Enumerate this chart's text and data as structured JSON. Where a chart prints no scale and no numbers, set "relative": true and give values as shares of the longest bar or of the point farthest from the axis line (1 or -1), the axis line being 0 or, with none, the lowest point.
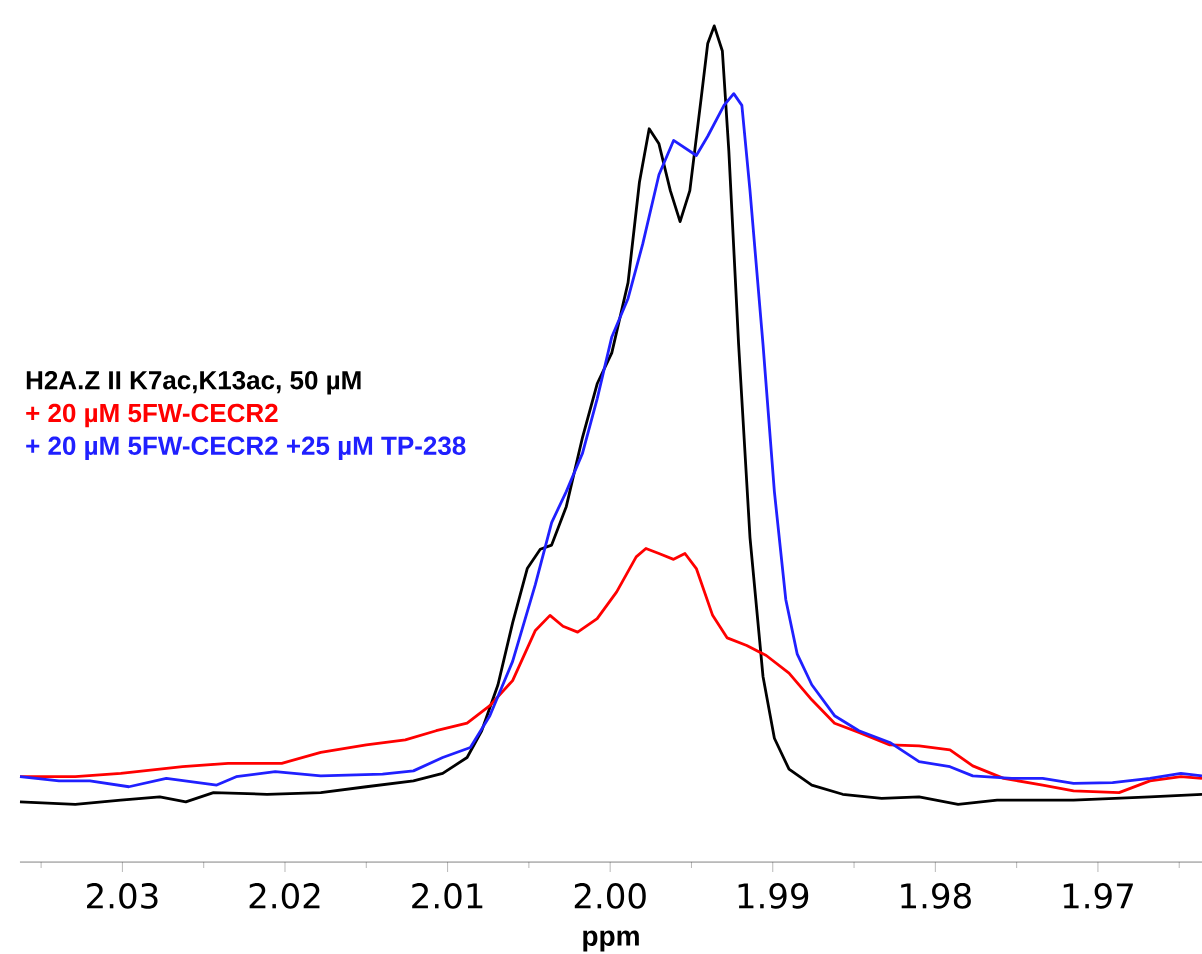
{
  "chart_data": {
    "type": "line",
    "relative": true,
    "xlabel": "ppm",
    "xlim": [
      2.0363,
      1.9636
    ],
    "xticks": [
      {
        "value": 2.035,
        "label": null
      },
      2.03,
      {
        "value": 2.025,
        "label": null
      },
      2.02,
      {
        "value": 2.015,
        "label": null
      },
      2.01,
      {
        "value": 2.005,
        "label": null
      },
      {
        "value": 2.0,
        "label": "2.00"
      },
      {
        "value": 1.995,
        "label": null
      },
      1.99,
      {
        "value": 1.985,
        "label": null
      },
      1.98,
      {
        "value": 1.975,
        "label": null
      },
      1.97,
      {
        "value": 1.965,
        "label": null
      }
    ],
    "grid": false,
    "marker": "none",
    "line_style": "solid",
    "series": [
      {
        "name": "H2A.Z II K7ac,K13ac,  50 µM",
        "color": "#000000",
        "x": [
          2.0363,
          2.0329,
          2.0301,
          2.0277,
          2.0261,
          2.0244,
          2.0211,
          2.0178,
          2.015,
          2.0121,
          2.0103,
          2.0088,
          2.0079,
          2.0069,
          2.006,
          2.0051,
          2.0043,
          2.0036,
          2.0027,
          2.0017,
          2.0008,
          1.9999,
          1.9989,
          1.9982,
          1.9976,
          1.997,
          1.9963,
          1.9957,
          1.9951,
          1.9944,
          1.994,
          1.9936,
          1.9931,
          1.9927,
          1.9921,
          1.9914,
          1.9906,
          1.9899,
          1.989,
          1.9876,
          1.9857,
          1.9833,
          1.981,
          1.9786,
          1.9762,
          1.9715,
          1.9668,
          1.9636
        ],
        "values": [
          0.072,
          0.069,
          0.074,
          0.078,
          0.072,
          0.083,
          0.081,
          0.083,
          0.09,
          0.097,
          0.106,
          0.125,
          0.157,
          0.212,
          0.286,
          0.351,
          0.374,
          0.379,
          0.425,
          0.508,
          0.572,
          0.609,
          0.693,
          0.813,
          0.877,
          0.859,
          0.803,
          0.766,
          0.803,
          0.914,
          0.979,
          1.0,
          0.97,
          0.85,
          0.619,
          0.388,
          0.222,
          0.148,
          0.111,
          0.092,
          0.081,
          0.076,
          0.078,
          0.069,
          0.074,
          0.074,
          0.078,
          0.081
        ]
      },
      {
        "name": "+ 20 µM 5FW-CECR2",
        "color": "#ff0000",
        "x": [
          2.0363,
          2.0329,
          2.0301,
          2.0263,
          2.0235,
          2.0202,
          2.0178,
          2.015,
          2.0126,
          2.0107,
          2.0088,
          2.0074,
          2.006,
          2.0046,
          2.0037,
          2.0029,
          2.002,
          2.0008,
          1.9996,
          1.9984,
          1.9978,
          1.997,
          1.9961,
          1.9954,
          1.9947,
          1.9937,
          1.9928,
          1.9916,
          1.9904,
          1.989,
          1.9876,
          1.9862,
          1.9847,
          1.9828,
          1.981,
          1.9791,
          1.9777,
          1.9758,
          1.9734,
          1.9715,
          1.9687,
          1.9668,
          1.9649,
          1.9636
        ],
        "values": [
          0.102,
          0.102,
          0.106,
          0.114,
          0.118,
          0.118,
          0.131,
          0.14,
          0.146,
          0.157,
          0.166,
          0.187,
          0.217,
          0.277,
          0.295,
          0.282,
          0.275,
          0.291,
          0.323,
          0.365,
          0.375,
          0.369,
          0.362,
          0.369,
          0.351,
          0.295,
          0.268,
          0.259,
          0.247,
          0.226,
          0.194,
          0.166,
          0.155,
          0.14,
          0.139,
          0.134,
          0.115,
          0.1,
          0.092,
          0.085,
          0.083,
          0.097,
          0.102,
          0.1
        ]
      },
      {
        "name": "+ 20 µM 5FW-CECR2 +25 µM TP-238",
        "color": "#2020ff",
        "x": [
          2.0363,
          2.0339,
          2.032,
          2.0296,
          2.0273,
          2.0242,
          2.023,
          2.0206,
          2.0178,
          2.014,
          2.0121,
          2.0103,
          2.0086,
          2.0074,
          2.006,
          2.0046,
          2.0036,
          2.0027,
          2.0017,
          2.0008,
          1.9999,
          1.9989,
          1.998,
          1.997,
          1.9961,
          1.9954,
          1.9947,
          1.994,
          1.993,
          1.9924,
          1.9919,
          1.9914,
          1.9906,
          1.9899,
          1.9892,
          1.9885,
          1.9876,
          1.9862,
          1.9847,
          1.9828,
          1.981,
          1.9791,
          1.9777,
          1.9753,
          1.9734,
          1.9715,
          1.9691,
          1.9668,
          1.9649,
          1.9636
        ],
        "values": [
          0.102,
          0.097,
          0.097,
          0.09,
          0.1,
          0.092,
          0.102,
          0.108,
          0.103,
          0.105,
          0.109,
          0.125,
          0.137,
          0.175,
          0.24,
          0.332,
          0.406,
          0.443,
          0.489,
          0.554,
          0.628,
          0.674,
          0.739,
          0.822,
          0.863,
          0.854,
          0.845,
          0.868,
          0.905,
          0.919,
          0.905,
          0.803,
          0.619,
          0.443,
          0.314,
          0.249,
          0.212,
          0.175,
          0.157,
          0.143,
          0.12,
          0.114,
          0.103,
          0.1,
          0.1,
          0.094,
          0.095,
          0.1,
          0.106,
          0.103
        ]
      }
    ]
  }
}
